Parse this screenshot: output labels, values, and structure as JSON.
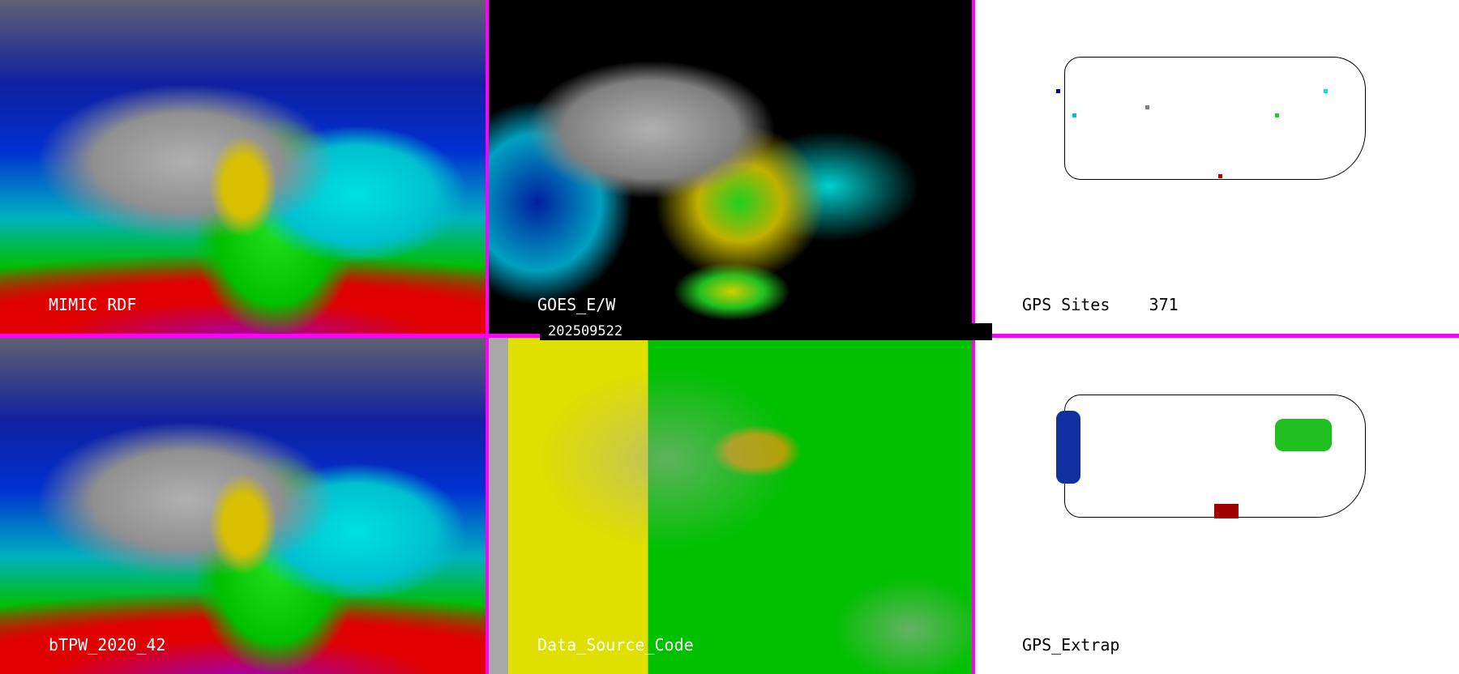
{
  "panels": [
    {
      "id": "mimic",
      "label": "MIMIC RDF"
    },
    {
      "id": "goes",
      "label": "GOES_E/W"
    },
    {
      "id": "gps-sites",
      "label": "GPS Sites",
      "count": "371"
    },
    {
      "id": "btpw",
      "label": "bTPW_2020_42"
    },
    {
      "id": "dsc",
      "label": "Data_Source_Code"
    },
    {
      "id": "gps-extrap",
      "label": "GPS_Extrap"
    }
  ],
  "timestamp": "202509522",
  "colors": {
    "separator": "#ff00ff",
    "background_gps": "#ffffff"
  }
}
